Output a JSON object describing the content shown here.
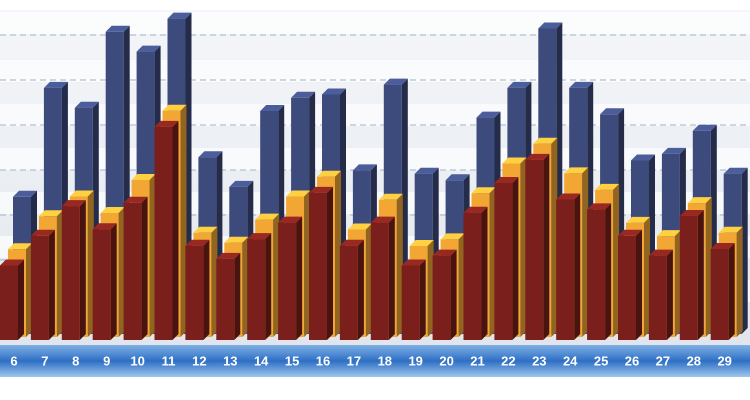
{
  "chart_data": {
    "type": "bar3d",
    "categories": [
      "6",
      "7",
      "8",
      "9",
      "10",
      "11",
      "12",
      "13",
      "14",
      "15",
      "16",
      "17",
      "18",
      "19",
      "20",
      "21",
      "22",
      "23",
      "24",
      "25",
      "26",
      "27",
      "28",
      "29"
    ],
    "series": [
      {
        "color": "#3c4a7c",
        "values": [
          44,
          77,
          71,
          94,
          88,
          98,
          56,
          47,
          70,
          74,
          75,
          52,
          78,
          51,
          49,
          68,
          77,
          95,
          77,
          69,
          55,
          57,
          64,
          51
        ]
      },
      {
        "color": "#f2a634",
        "values": [
          29,
          39,
          45,
          40,
          50,
          71,
          34,
          31,
          38,
          45,
          51,
          35,
          44,
          30,
          32,
          46,
          55,
          61,
          52,
          47,
          37,
          33,
          43,
          34
        ]
      },
      {
        "color": "#7a1f1b",
        "values": [
          25,
          34,
          43,
          36,
          44,
          67,
          31,
          27,
          33,
          38,
          47,
          31,
          38,
          25,
          28,
          41,
          50,
          57,
          45,
          42,
          34,
          28,
          40,
          30
        ]
      }
    ],
    "ylim": [
      0,
      100
    ]
  }
}
